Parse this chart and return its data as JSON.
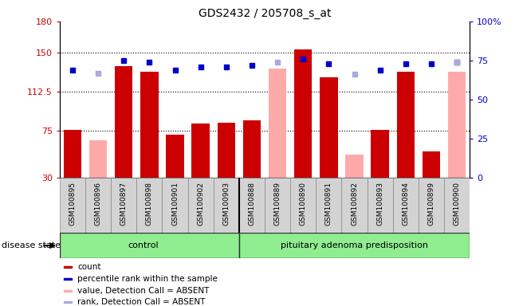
{
  "title": "GDS2432 / 205708_s_at",
  "samples": [
    "GSM100895",
    "GSM100896",
    "GSM100897",
    "GSM100898",
    "GSM100901",
    "GSM100902",
    "GSM100903",
    "GSM100888",
    "GSM100889",
    "GSM100890",
    "GSM100891",
    "GSM100892",
    "GSM100893",
    "GSM100894",
    "GSM100899",
    "GSM100900"
  ],
  "count_values": [
    76,
    null,
    137,
    132,
    71,
    82,
    83,
    85,
    null,
    153,
    126,
    null,
    76,
    132,
    55,
    null
  ],
  "count_absent": [
    null,
    66,
    null,
    null,
    null,
    null,
    null,
    null,
    135,
    null,
    null,
    52,
    null,
    null,
    null,
    132
  ],
  "percentile_values": [
    69,
    null,
    75,
    74,
    69,
    71,
    71,
    72,
    null,
    76,
    73,
    null,
    69,
    73,
    73,
    74
  ],
  "percentile_absent": [
    null,
    67,
    null,
    null,
    null,
    null,
    null,
    null,
    74,
    null,
    null,
    66,
    null,
    null,
    null,
    74
  ],
  "control_count": 7,
  "disease_count": 9,
  "ylim_left": [
    30,
    180
  ],
  "ylim_right": [
    0,
    100
  ],
  "yticks_left": [
    30,
    75,
    112.5,
    150,
    180
  ],
  "ytick_labels_left": [
    "30",
    "75",
    "112.5",
    "150",
    "180"
  ],
  "yticks_right": [
    0,
    25,
    50,
    75,
    100
  ],
  "ytick_labels_right": [
    "0",
    "25",
    "50",
    "75",
    "100%"
  ],
  "hgrid_values": [
    75,
    112.5,
    150
  ],
  "bar_color": "#cc0000",
  "bar_absent_color": "#ffaaaa",
  "dot_color": "#0000cc",
  "dot_absent_color": "#aaaadd",
  "legend_items": [
    "count",
    "percentile rank within the sample",
    "value, Detection Call = ABSENT",
    "rank, Detection Call = ABSENT"
  ],
  "control_label": "control",
  "disease_label": "pituitary adenoma predisposition",
  "disease_state_label": "disease state"
}
